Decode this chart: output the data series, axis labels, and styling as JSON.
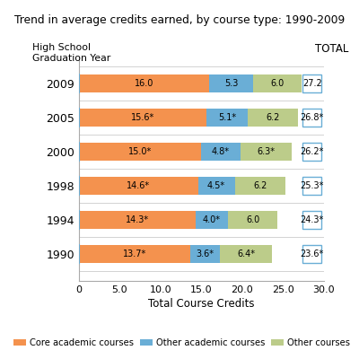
{
  "title": "Trend in average credits earned, by course type: 1990-2009",
  "ylabel_line1": "High School",
  "ylabel_line2": "Graduation Year",
  "xlabel": "Total Course Credits",
  "total_label": "TOTAL",
  "years": [
    1990,
    1994,
    1998,
    2000,
    2005,
    2009
  ],
  "core": [
    13.7,
    14.3,
    14.6,
    15.0,
    15.6,
    16.0
  ],
  "other_academic": [
    3.6,
    4.0,
    4.5,
    4.8,
    5.1,
    5.3
  ],
  "other": [
    6.4,
    6.0,
    6.2,
    6.3,
    6.2,
    6.0
  ],
  "core_labels": [
    "13.7*",
    "14.3*",
    "14.6*",
    "15.0*",
    "15.6*",
    "16.0"
  ],
  "other_academic_labels": [
    "3.6*",
    "4.0*",
    "4.5*",
    "4.8*",
    "5.1*",
    "5.3"
  ],
  "other_labels": [
    "6.4*",
    "6.0",
    "6.2",
    "6.3*",
    "6.2",
    "6.0"
  ],
  "total_labels": [
    "23.6*",
    "24.3*",
    "25.3*",
    "26.2*",
    "26.8*",
    "27.2"
  ],
  "color_core": "#F4924E",
  "color_other_academic": "#6AAED6",
  "color_other": "#BCCC8A",
  "xlim": [
    0,
    30
  ],
  "xticks": [
    0,
    5.0,
    10.0,
    15.0,
    20.0,
    25.0,
    30.0
  ],
  "legend_labels": [
    "Core academic courses",
    "Other academic courses",
    "Other courses"
  ],
  "bg_color": "#FFFFFF",
  "bar_height": 0.52
}
